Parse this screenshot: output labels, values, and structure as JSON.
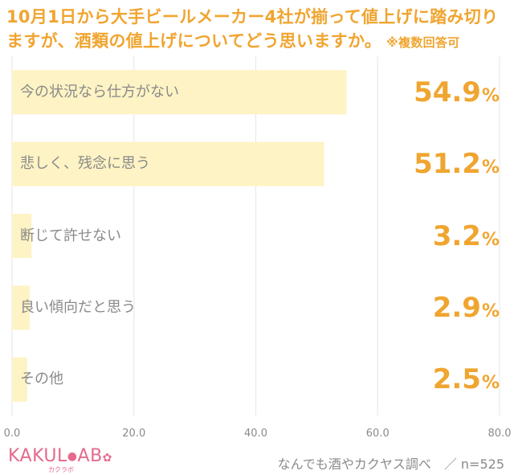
{
  "header": {
    "title": "10月1日から大手ビールメーカー4社が揃って値上げに踏み切りますが、酒類の値上げについてどう思いますか。",
    "note": "※複数回答可"
  },
  "chart_data": {
    "type": "bar",
    "orientation": "horizontal",
    "categories": [
      "今の状況なら仕方がない",
      "悲しく、残念に思う",
      "断じて許せない",
      "良い傾向だと思う",
      "その他"
    ],
    "values": [
      54.9,
      51.2,
      3.2,
      2.9,
      2.5
    ],
    "value_labels": [
      "54.9",
      "51.2",
      "3.2",
      "2.9",
      "2.5"
    ],
    "unit": "%",
    "xlim": [
      0,
      80
    ],
    "xticks": [
      "0.0",
      "20.0",
      "40.0",
      "60.0",
      "80.0"
    ],
    "bar_color": "#fdf3c4",
    "grid_color": "#e6e6e6",
    "value_color": "#f0a530"
  },
  "footer": {
    "logo": "KAKUL",
    "logo_ab": "AB",
    "logo_sub": "カクラボ",
    "source": "なんでも酒やカクヤス調べ　／ n=525"
  }
}
